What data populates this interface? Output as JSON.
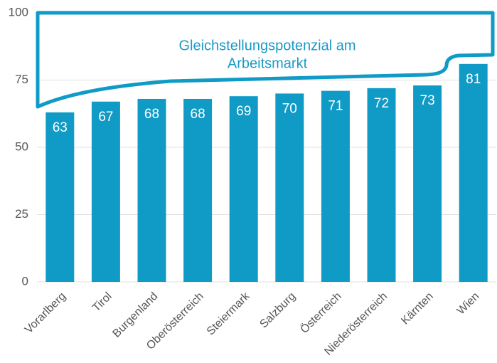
{
  "chart_data": {
    "type": "bar",
    "annotation_lines": [
      "Gleichstellungspotenzial am",
      "Arbeitsmarkt"
    ],
    "categories": [
      "Vorarlberg",
      "Tirol",
      "Burgenland",
      "Oberösterreich",
      "Steiermark",
      "Salzburg",
      "Österreich",
      "Niederösterreich",
      "Kärnten",
      "Wien"
    ],
    "values": [
      63,
      67,
      68,
      68,
      69,
      70,
      71,
      72,
      73,
      81
    ],
    "color": "#0f9bc6",
    "ylim": [
      0,
      100
    ],
    "yticks": [
      0,
      25,
      50,
      75,
      100
    ],
    "grid": true
  }
}
